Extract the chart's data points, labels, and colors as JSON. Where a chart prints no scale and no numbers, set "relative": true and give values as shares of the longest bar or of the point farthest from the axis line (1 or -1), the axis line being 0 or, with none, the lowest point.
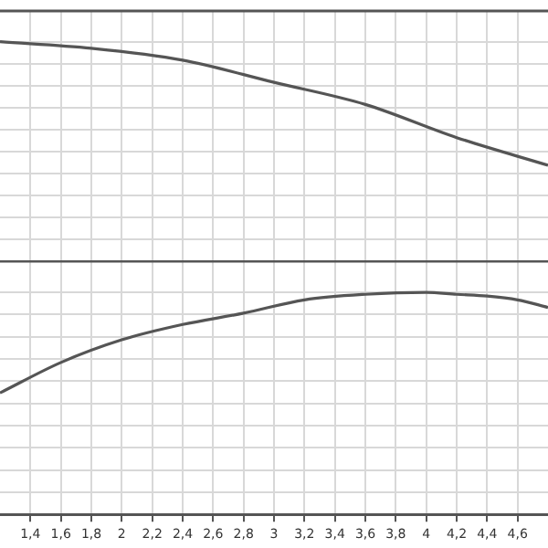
{
  "chart_data": [
    {
      "type": "line",
      "relative": true,
      "x": [
        1.2,
        1.8,
        2.4,
        3.0,
        3.6,
        4.2,
        4.8
      ],
      "xlim": [
        1.2,
        4.8
      ],
      "xticks": [
        {
          "value": 1.4,
          "label": null
        },
        {
          "value": 1.6,
          "label": null
        },
        {
          "value": 1.8,
          "label": null
        },
        {
          "value": 2,
          "label": null
        },
        {
          "value": 2.2,
          "label": null
        },
        {
          "value": 2.4,
          "label": null
        },
        {
          "value": 2.6,
          "label": null
        },
        {
          "value": 2.8,
          "label": null
        },
        {
          "value": 3,
          "label": null
        },
        {
          "value": 3.2,
          "label": null
        },
        {
          "value": 3.4,
          "label": null
        },
        {
          "value": 3.6,
          "label": null
        },
        {
          "value": 3.8,
          "label": null
        },
        {
          "value": 4,
          "label": null
        },
        {
          "value": 4.2,
          "label": null
        },
        {
          "value": 4.4,
          "label": null
        },
        {
          "value": 4.6,
          "label": null
        }
      ],
      "series": [
        {
          "color": "#555555",
          "values": [
            1,
            0.97,
            0.916,
            0.815,
            0.714,
            0.563,
            0.437
          ]
        }
      ],
      "grid": true,
      "marker": "none",
      "tick_labels": false
    },
    {
      "type": "line",
      "relative": true,
      "x": [
        1.2,
        1.6,
        2.0,
        2.4,
        2.8,
        3.2,
        3.6,
        4.0,
        4.2,
        4.4,
        4.6,
        4.8
      ],
      "xlim": [
        1.2,
        4.8
      ],
      "xticks": [
        {
          "value": 1.4,
          "label": "1,4"
        },
        {
          "value": 1.6,
          "label": "1,6"
        },
        {
          "value": 1.8,
          "label": "1,8"
        },
        {
          "value": 2,
          "label": "2"
        },
        {
          "value": 2.2,
          "label": "2,2"
        },
        {
          "value": 2.4,
          "label": "2,4"
        },
        {
          "value": 2.6,
          "label": "2,6"
        },
        {
          "value": 2.8,
          "label": "2,8"
        },
        {
          "value": 3,
          "label": "3"
        },
        {
          "value": 3.2,
          "label": "3,2"
        },
        {
          "value": 3.4,
          "label": "3,4"
        },
        {
          "value": 3.6,
          "label": "3,6"
        },
        {
          "value": 3.8,
          "label": "3,8"
        },
        {
          "value": 4,
          "label": "4"
        },
        {
          "value": 4.2,
          "label": "4,2"
        },
        {
          "value": 4.4,
          "label": "4,4"
        },
        {
          "value": 4.6,
          "label": "4,6"
        }
      ],
      "series": [
        {
          "color": "#555555",
          "values": [
            0.547,
            0.684,
            0.786,
            0.855,
            0.906,
            0.966,
            0.991,
            1,
            0.991,
            0.983,
            0.966,
            0.932
          ]
        }
      ],
      "grid": true,
      "marker": "none",
      "tick_labels": "x"
    }
  ]
}
